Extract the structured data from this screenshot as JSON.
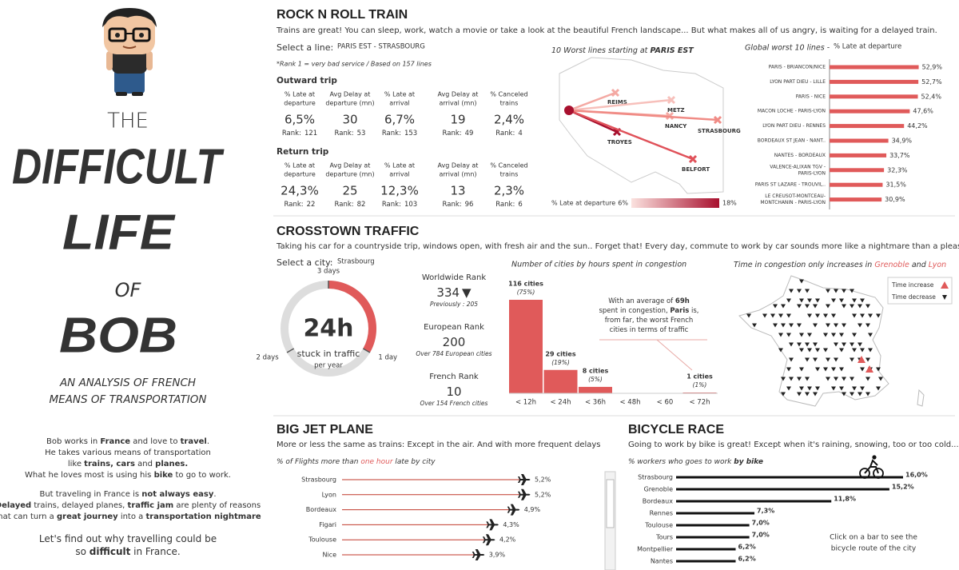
{
  "left": {
    "title": [
      "THE",
      "DIFFICULT",
      "LIFE",
      "OF",
      "BOB"
    ],
    "subtitle": [
      "AN ANALYSIS OF FRENCH",
      "MEANS OF TRANSPORTATION"
    ],
    "intro": [
      [
        [
          {
            "text": "Bob works in "
          },
          {
            "text": "France",
            "bold": true
          },
          {
            "text": " and love to "
          },
          {
            "text": "travel",
            "bold": true
          },
          {
            "text": "."
          }
        ],
        [
          {
            "text": "He takes various means of transportation"
          }
        ],
        [
          {
            "text": "like "
          },
          {
            "text": "trains, cars",
            "bold": true
          },
          {
            "text": " and "
          },
          {
            "text": "planes.",
            "bold": true
          }
        ],
        [
          {
            "text": "What he loves most is using his "
          },
          {
            "text": "bike",
            "bold": true
          },
          {
            "text": " to go  to work."
          }
        ]
      ],
      [
        [
          {
            "text": "But traveling in France is "
          },
          {
            "text": "not always easy",
            "bold": true
          },
          {
            "text": "."
          }
        ],
        [
          {
            "text": "Delayed",
            "bold": true
          },
          {
            "text": " trains, delayed planes, "
          },
          {
            "text": "traffic jam",
            "bold": true
          },
          {
            "text": " are plenty of reasons"
          }
        ],
        [
          {
            "text": "that can turn a "
          },
          {
            "text": "great journey",
            "bold": true
          },
          {
            "text": " into a "
          },
          {
            "text": "transportation nightmare",
            "bold": true
          }
        ]
      ],
      [
        [
          {
            "text": "Let's find out why travelling could be"
          }
        ],
        [
          {
            "text": "so "
          },
          {
            "text": "difficult",
            "bold": true
          },
          {
            "text": " in France."
          }
        ]
      ]
    ]
  },
  "train": {
    "title": "ROCK N ROLL TRAIN",
    "subtitle": "Trains are great! You can sleep, work, watch a movie or take a look at the beautiful French landscape... But what makes all of us angry, is waiting for a delayed train.",
    "select_label": "Select a line:",
    "selected": "PARIS EST - STRASBOURG",
    "note": "*Rank 1 = very bad service / Based on 157 lines",
    "metric_headers": [
      [
        "% Late at",
        "departure"
      ],
      [
        "Avg Delay at",
        "departure (mn)"
      ],
      [
        "% Late at",
        "arrival"
      ],
      [
        "Avg Delay at",
        "arrival (mn)"
      ],
      [
        "% Canceled",
        "trains"
      ]
    ],
    "rank_label": "Rank:",
    "trips": [
      {
        "title": "Outward trip",
        "values": [
          "6,5%",
          30,
          "6,7%",
          19,
          "2,4%"
        ],
        "ranks": [
          121,
          53,
          153,
          49,
          4
        ]
      },
      {
        "title": "Return trip",
        "values": [
          "24,3%",
          25,
          "12,3%",
          13,
          "2,3%"
        ],
        "ranks": [
          22,
          82,
          103,
          96,
          6
        ]
      }
    ],
    "map": {
      "title": [
        {
          "text": "10 Worst lines starting at "
        },
        {
          "text": "PARIS EST",
          "bold": true
        }
      ],
      "cities": [
        {
          "name": "REIMS",
          "color": "#f4a9a3"
        },
        {
          "name": "METZ",
          "color": "#f7c0bb"
        },
        {
          "name": "NANCY",
          "color": "#f4a9a3"
        },
        {
          "name": "STRASBOURG",
          "color": "#f08b85"
        },
        {
          "name": "TROYES",
          "color": "#a8102e"
        },
        {
          "name": "BELFORT",
          "color": "#e0525a"
        }
      ],
      "legend": {
        "title": "% Late at departure",
        "min": {
          "value": 6,
          "label": "6%"
        },
        "max": {
          "value": 18,
          "label": "18%"
        }
      }
    },
    "worst": {
      "type": "bar",
      "title": "Global worst 10 lines -",
      "axis_label": "% Late at departure",
      "categories": [
        "PARIS - BRIANCON/NICE",
        "LYON PART DIEU - LILLE",
        "PARIS - NICE",
        "MACON LOCHE - PARIS-LYON",
        "LYON PART DIEU - RENNES",
        "BORDEAUX ST JEAN - NANT..",
        "NANTES - BORDEAUX",
        [
          "VALENCE-ALIXAN TGV -",
          "PARIS-LYON"
        ],
        "PARIS ST LAZARE - TROUVIL..",
        [
          "LE CREUSOT-MONTCEAU-",
          "MONTCHANIN - PARIS-LYON"
        ]
      ],
      "values": [
        52.9,
        52.7,
        52.4,
        47.6,
        44.2,
        34.9,
        33.7,
        32.3,
        31.5,
        30.9
      ],
      "value_labels": [
        "52,9%",
        "52,7%",
        "52,4%",
        "47,6%",
        "44,2%",
        "34,9%",
        "33,7%",
        "32,3%",
        "31,5%",
        "30,9%"
      ],
      "color": "#e05a5a",
      "xlim": [
        0,
        55
      ]
    }
  },
  "traffic": {
    "title": "CROSSTOWN TRAFFIC",
    "subtitle": "Taking his car for a countryside trip, windows open, with fresh air and the sun.. Forget that! Every day, commute to work by car sounds more like a nightmare than a pleasant journey.",
    "select_label": "Select a city:",
    "selected": "Strasbourg",
    "gauge": {
      "value": 24,
      "value_label": "24h",
      "max": 72,
      "text": "stuck in traffic",
      "unit": "per year",
      "ticks": [
        {
          "value": 72,
          "label": "3 days"
        },
        {
          "value": 24,
          "label": "1 day"
        },
        {
          "value": 48,
          "label": "2 days"
        }
      ],
      "color": "#e05a5a"
    },
    "ranks": [
      {
        "label": "Worldwide Rank",
        "value": 334,
        "arrow": "▼",
        "note": "Previously : 205"
      },
      {
        "label": "European Rank",
        "value": 200,
        "note": "Over 784  European cities"
      },
      {
        "label": "French Rank",
        "value": 10,
        "note": "Over 154 French cities"
      }
    ],
    "hist": {
      "type": "bar",
      "title": "Number of cities by hours spent in congestion",
      "categories": [
        "< 12h",
        "< 24h",
        "< 36h",
        "< 48h",
        "< 60",
        "< 72h"
      ],
      "values": [
        116,
        29,
        8,
        0,
        0,
        1
      ],
      "value_labels": [
        "116 cities",
        "29 cities",
        "8 cities",
        null,
        null,
        "1 cities"
      ],
      "share_labels": [
        "(75%)",
        "(19%)",
        "(5%)",
        null,
        null,
        "(1%)"
      ],
      "color": "#e05a5a",
      "ylim": [
        0,
        116
      ],
      "annotation": [
        [
          {
            "text": "With an average of "
          },
          {
            "text": "69h",
            "bold": true
          }
        ],
        [
          {
            "text": "spent in congestion, "
          },
          {
            "text": "Paris",
            "bold": true
          },
          {
            "text": " is,"
          }
        ],
        [
          {
            "text": "from far, the worst French"
          }
        ],
        [
          {
            "text": "cities in terms of traffic"
          }
        ]
      ]
    },
    "map": {
      "title": [
        {
          "text": "Time in congestion only increases in "
        },
        {
          "text": "Grenoble",
          "color": "#e05a5a"
        },
        {
          "text": " and "
        },
        {
          "text": "Lyon",
          "color": "#e05a5a"
        }
      ],
      "legend": [
        {
          "name": "Time increase",
          "color": "#e05a5a"
        },
        {
          "name": "Time decrease",
          "color": "#222222"
        }
      ]
    }
  },
  "plane": {
    "title": "BIG JET PLANE",
    "subtitle": "More or less the same as trains: Except in the air. And with more frequent delays",
    "chart": {
      "type": "lollipop",
      "title": [
        {
          "text": "% of Flights more than "
        },
        {
          "text": "one hour",
          "color": "#e05a5a"
        },
        {
          "text": "  late by city"
        }
      ],
      "categories": [
        "Strasbourg",
        "Lyon",
        "Bordeaux",
        "Figari",
        "Toulouse",
        "Nice"
      ],
      "values": [
        5.2,
        5.2,
        4.9,
        4.3,
        4.2,
        3.9
      ],
      "value_labels": [
        "5,2%",
        "5,2%",
        "4,9%",
        "4,3%",
        "4,2%",
        "3,9%"
      ],
      "color": "#c0392b",
      "xlim": [
        0,
        5.2
      ]
    }
  },
  "bike": {
    "title": "BICYCLE RACE",
    "subtitle": "Going to work by bike is great! Except when it's raining, snowing, too or too cold...",
    "chart": {
      "type": "bar",
      "title": [
        {
          "text": "% workers who goes to work "
        },
        {
          "text": "by bike",
          "bold": true
        }
      ],
      "categories": [
        "Strasbourg",
        "Grenoble",
        "Bordeaux",
        "Rennes",
        "Toulouse",
        "Tours",
        "Montpellier",
        "Nantes"
      ],
      "values": [
        16.0,
        15.2,
        11.8,
        7.3,
        7.0,
        7.0,
        6.2,
        6.2
      ],
      "value_labels": [
        "16,0%",
        "15,2%",
        "11,8%",
        "7,3%",
        "7,0%",
        "7,0%",
        "6,2%",
        "6,2%"
      ],
      "color": "#111111",
      "xlim": [
        0,
        16
      ]
    },
    "note": [
      "Click on a bar to see the",
      "bicycle route of the city"
    ]
  }
}
